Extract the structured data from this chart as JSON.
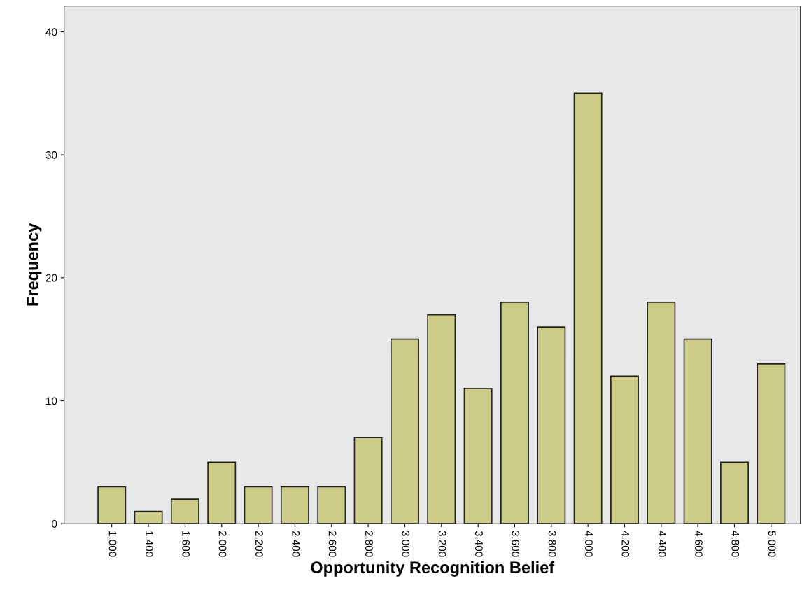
{
  "chart_data": {
    "type": "bar",
    "xlabel": "Opportunity Recognition Belief",
    "ylabel": "Frequency",
    "categories": [
      "1.000",
      "1.400",
      "1.600",
      "2.000",
      "2.200",
      "2.400",
      "2.600",
      "2.800",
      "3.000",
      "3.200",
      "3.400",
      "3.600",
      "3.800",
      "4.000",
      "4.200",
      "4.400",
      "4.600",
      "4.800",
      "5.000"
    ],
    "values": [
      3,
      1,
      2,
      5,
      3,
      3,
      3,
      7,
      15,
      17,
      11,
      18,
      16,
      35,
      12,
      18,
      15,
      5,
      13
    ],
    "color": "#cccc88",
    "ylim": [
      0,
      42.1
    ],
    "yticks": [
      0,
      10,
      20,
      30,
      40
    ],
    "grid": false
  }
}
